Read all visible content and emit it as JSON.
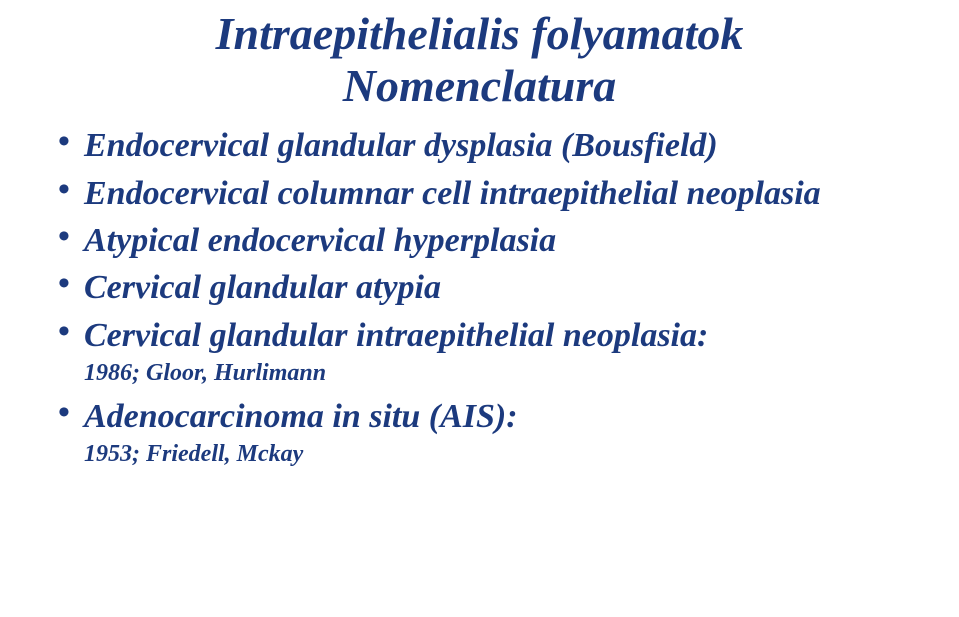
{
  "colors": {
    "text": "#1c3a7e",
    "background": "#ffffff"
  },
  "typography": {
    "family": "Georgia / serif",
    "title_fontsize": 46,
    "item_fontsize": 34,
    "subnote_fontsize": 24,
    "style": "italic",
    "weight": "bold"
  },
  "title": {
    "line1": "Intraepithelialis folyamatok",
    "line2": "Nomenclatura"
  },
  "bullets": [
    {
      "text": "Endocervical glandular dysplasia (Bousfield)",
      "subnote": null
    },
    {
      "text": "Endocervical columnar cell intraepithelial neoplasia",
      "subnote": null
    },
    {
      "text": "Atypical endocervical hyperplasia",
      "subnote": null
    },
    {
      "text": "Cervical glandular atypia",
      "subnote": null
    },
    {
      "text": "Cervical glandular intraepithelial neoplasia:",
      "subnote": "1986; Gloor, Hurlimann"
    },
    {
      "text": "Adenocarcinoma in situ (AIS):",
      "subnote": "1953; Friedell, Mckay"
    }
  ]
}
